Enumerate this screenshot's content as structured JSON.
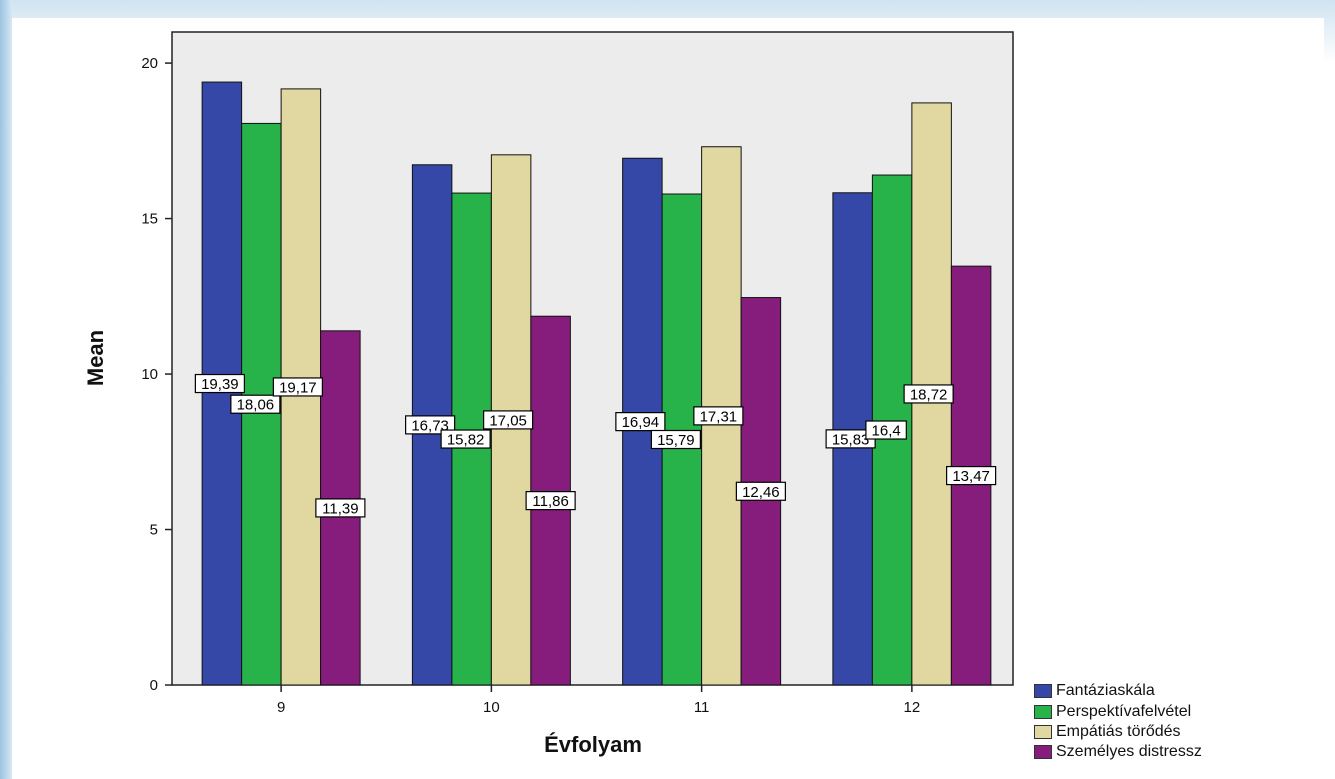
{
  "chart_data": {
    "type": "bar",
    "categories": [
      "9",
      "10",
      "11",
      "12"
    ],
    "series": [
      {
        "name": "Fantáziaskála",
        "values": [
          19.39,
          16.73,
          16.94,
          15.83
        ],
        "labels": [
          "19,39",
          "16,73",
          "16,94",
          "15,83"
        ],
        "color": "#3548a8"
      },
      {
        "name": "Perspektívafelvétel",
        "values": [
          18.06,
          15.82,
          15.79,
          16.4
        ],
        "labels": [
          "18,06",
          "15,82",
          "15,79",
          "16,4"
        ],
        "color": "#27b24a"
      },
      {
        "name": "Empátiás törődés",
        "values": [
          19.17,
          17.05,
          17.31,
          18.72
        ],
        "labels": [
          "19,17",
          "17,05",
          "17,31",
          "18,72"
        ],
        "color": "#e0d8a0"
      },
      {
        "name": "Személyes distressz",
        "values": [
          11.39,
          11.86,
          12.46,
          13.47
        ],
        "labels": [
          "11,39",
          "11,86",
          "12,46",
          "13,47"
        ],
        "color": "#861d7c"
      }
    ],
    "xlabel": "Évfolyam",
    "ylabel": "Mean",
    "ylim": [
      0,
      21
    ],
    "yticks": [
      "0",
      "5",
      "10",
      "15",
      "20"
    ],
    "grid": false,
    "legend_position": "bottom-right",
    "plot_background": "#ececec"
  }
}
